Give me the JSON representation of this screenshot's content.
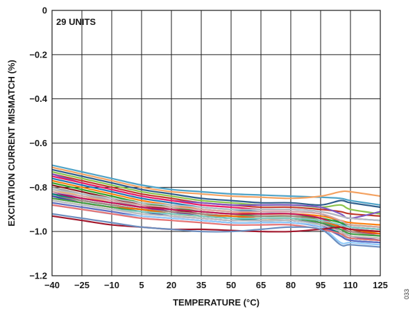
{
  "chart_data": {
    "type": "line",
    "xlabel": "TEMPERATURE (°C)",
    "ylabel": "EXCITATION CURRENT MISMATCH (%)",
    "annotation": "29 UNITS",
    "figure_id": "033",
    "xlim": [
      -40,
      125
    ],
    "ylim": [
      -1.2,
      0
    ],
    "xticks": [
      "−40",
      "−25",
      "−10",
      "5",
      "20",
      "35",
      "50",
      "65",
      "80",
      "95",
      "110",
      "125"
    ],
    "yticks": [
      "0",
      "−0.2",
      "−0.4",
      "−0.6",
      "−0.8",
      "−1.0",
      "−1.2"
    ],
    "grid": true,
    "legend": "none",
    "x": [
      -40,
      -25,
      -10,
      5,
      20,
      35,
      50,
      65,
      80,
      95,
      105,
      110,
      125
    ],
    "series": [
      {
        "color": "#4fa3c7",
        "values": [
          -0.7,
          -0.73,
          -0.76,
          -0.79,
          -0.81,
          -0.82,
          -0.83,
          -0.835,
          -0.84,
          -0.845,
          -0.85,
          -0.86,
          -0.88
        ]
      },
      {
        "color": "#f4a261",
        "values": [
          -0.71,
          -0.74,
          -0.77,
          -0.8,
          -0.82,
          -0.83,
          -0.84,
          -0.845,
          -0.85,
          -0.84,
          -0.82,
          -0.82,
          -0.84
        ]
      },
      {
        "color": "#2e5e8c",
        "values": [
          -0.72,
          -0.75,
          -0.78,
          -0.81,
          -0.83,
          -0.85,
          -0.86,
          -0.87,
          -0.87,
          -0.88,
          -0.86,
          -0.87,
          -0.89
        ]
      },
      {
        "color": "#8bc34a",
        "values": [
          -0.73,
          -0.76,
          -0.79,
          -0.82,
          -0.84,
          -0.86,
          -0.87,
          -0.88,
          -0.88,
          -0.89,
          -0.88,
          -0.9,
          -0.92
        ]
      },
      {
        "color": "#c0392b",
        "values": [
          -0.74,
          -0.77,
          -0.8,
          -0.83,
          -0.85,
          -0.87,
          -0.88,
          -0.89,
          -0.89,
          -0.9,
          -0.91,
          -0.92,
          -0.93
        ]
      },
      {
        "color": "#7e57c2",
        "values": [
          -0.74,
          -0.78,
          -0.81,
          -0.84,
          -0.86,
          -0.87,
          -0.88,
          -0.88,
          -0.88,
          -0.89,
          -0.92,
          -0.94,
          -0.91
        ]
      },
      {
        "color": "#e91e63",
        "values": [
          -0.75,
          -0.78,
          -0.81,
          -0.84,
          -0.86,
          -0.88,
          -0.89,
          -0.9,
          -0.9,
          -0.91,
          -0.93,
          -0.94,
          -0.95
        ]
      },
      {
        "color": "#1f77b4",
        "values": [
          -0.76,
          -0.79,
          -0.82,
          -0.85,
          -0.87,
          -0.89,
          -0.9,
          -0.91,
          -0.91,
          -0.92,
          -0.96,
          -0.98,
          -0.99
        ]
      },
      {
        "color": "#ff7f0e",
        "values": [
          -0.77,
          -0.8,
          -0.83,
          -0.86,
          -0.88,
          -0.9,
          -0.91,
          -0.92,
          -0.92,
          -0.93,
          -0.95,
          -0.96,
          -0.97
        ]
      },
      {
        "color": "#2ca02c",
        "values": [
          -0.78,
          -0.81,
          -0.84,
          -0.87,
          -0.89,
          -0.91,
          -0.92,
          -0.93,
          -0.93,
          -0.94,
          -0.96,
          -0.97,
          -0.98
        ]
      },
      {
        "color": "#8b1a1a",
        "values": [
          -0.79,
          -0.82,
          -0.85,
          -0.88,
          -0.9,
          -0.92,
          -0.93,
          -0.94,
          -0.94,
          -0.95,
          -0.97,
          -0.98,
          -0.99
        ]
      },
      {
        "color": "#9e9e9e",
        "values": [
          -0.8,
          -0.83,
          -0.86,
          -0.89,
          -0.91,
          -0.93,
          -0.94,
          -0.95,
          -0.95,
          -0.96,
          -0.98,
          -0.99,
          -1.0
        ]
      },
      {
        "color": "#ffb74d",
        "values": [
          -0.81,
          -0.84,
          -0.87,
          -0.89,
          -0.91,
          -0.92,
          -0.93,
          -0.94,
          -0.94,
          -0.96,
          -1.0,
          -1.02,
          -1.03
        ]
      },
      {
        "color": "#b0bec5",
        "values": [
          -0.81,
          -0.83,
          -0.85,
          -0.87,
          -0.88,
          -0.89,
          -0.9,
          -0.9,
          -0.9,
          -0.91,
          -0.93,
          -0.94,
          -0.95
        ]
      },
      {
        "color": "#6a1b9a",
        "values": [
          -0.82,
          -0.85,
          -0.87,
          -0.89,
          -0.91,
          -0.93,
          -0.94,
          -0.94,
          -0.94,
          -0.96,
          -1.0,
          -1.02,
          -1.04
        ]
      },
      {
        "color": "#d4a5a5",
        "values": [
          -0.82,
          -0.84,
          -0.86,
          -0.88,
          -0.89,
          -0.9,
          -0.91,
          -0.91,
          -0.91,
          -0.92,
          -0.95,
          -0.97,
          -0.98
        ]
      },
      {
        "color": "#c2185b",
        "values": [
          -0.83,
          -0.85,
          -0.87,
          -0.89,
          -0.9,
          -0.91,
          -0.92,
          -0.92,
          -0.92,
          -0.94,
          -0.98,
          -1.0,
          -1.01
        ]
      },
      {
        "color": "#00897b",
        "values": [
          -0.83,
          -0.86,
          -0.88,
          -0.9,
          -0.92,
          -0.93,
          -0.94,
          -0.95,
          -0.95,
          -0.97,
          -1.01,
          -1.03,
          -1.04
        ]
      },
      {
        "color": "#a1887f",
        "values": [
          -0.84,
          -0.86,
          -0.88,
          -0.9,
          -0.91,
          -0.92,
          -0.93,
          -0.93,
          -0.93,
          -0.95,
          -0.99,
          -1.0,
          -1.02
        ]
      },
      {
        "color": "#3949ab",
        "values": [
          -0.84,
          -0.87,
          -0.89,
          -0.91,
          -0.93,
          -0.94,
          -0.95,
          -0.95,
          -0.95,
          -0.97,
          -1.02,
          -1.04,
          -1.05
        ]
      },
      {
        "color": "#ef6c00",
        "values": [
          -0.85,
          -0.87,
          -0.89,
          -0.9,
          -0.92,
          -0.93,
          -0.93,
          -0.94,
          -0.94,
          -0.95,
          -0.98,
          -0.99,
          -1.01
        ]
      },
      {
        "color": "#43a047",
        "values": [
          -0.85,
          -0.87,
          -0.89,
          -0.91,
          -0.92,
          -0.93,
          -0.94,
          -0.94,
          -0.94,
          -0.96,
          -0.99,
          -1.01,
          -1.02
        ]
      },
      {
        "color": "#80cbc4",
        "values": [
          -0.86,
          -0.88,
          -0.9,
          -0.91,
          -0.92,
          -0.93,
          -0.94,
          -0.94,
          -0.94,
          -0.95,
          -0.97,
          -0.98,
          -0.99
        ]
      },
      {
        "color": "#bdbdbd",
        "values": [
          -0.86,
          -0.88,
          -0.9,
          -0.92,
          -0.93,
          -0.94,
          -0.95,
          -0.95,
          -0.95,
          -0.97,
          -1.0,
          -1.02,
          -1.03
        ]
      },
      {
        "color": "#5c6bc0",
        "values": [
          -0.87,
          -0.89,
          -0.91,
          -0.93,
          -0.94,
          -0.95,
          -0.96,
          -0.96,
          -0.96,
          -0.98,
          -1.02,
          -1.04,
          -1.05
        ]
      },
      {
        "color": "#90caf9",
        "values": [
          -0.88,
          -0.9,
          -0.92,
          -0.93,
          -0.94,
          -0.95,
          -0.96,
          -0.96,
          -0.96,
          -0.98,
          -1.05,
          -1.05,
          -1.06
        ]
      },
      {
        "color": "#e57373",
        "values": [
          -0.88,
          -0.9,
          -0.92,
          -0.94,
          -0.95,
          -0.96,
          -0.97,
          -0.97,
          -0.97,
          -0.99,
          -1.01,
          -1.03,
          -1.04
        ]
      },
      {
        "color": "#a1162b",
        "values": [
          -0.93,
          -0.95,
          -0.97,
          -0.98,
          -0.99,
          -0.99,
          -0.995,
          -1.0,
          -1.0,
          -0.99,
          -0.98,
          -0.99,
          -1.0
        ]
      },
      {
        "color": "#6c8ebf",
        "values": [
          -0.92,
          -0.94,
          -0.96,
          -0.98,
          -0.99,
          -1.0,
          -1.0,
          -0.99,
          -0.98,
          -0.99,
          -1.06,
          -1.06,
          -1.07
        ]
      }
    ]
  }
}
